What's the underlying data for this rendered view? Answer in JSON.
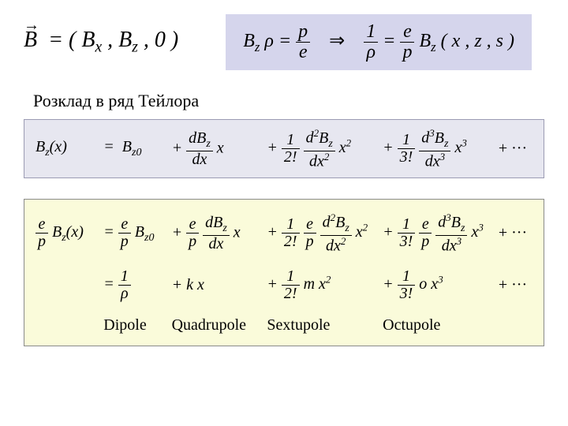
{
  "colors": {
    "page_bg": "#ffffff",
    "purple_band": "#d5d5ec",
    "lav_band": "#e7e7f0",
    "yellow_band": "#fafbda",
    "text": "#000000"
  },
  "top": {
    "B_vector": "B",
    "B_components": "= ( Bₓ , B_z , 0 )",
    "eq_left_lhs": "B_z ρ =",
    "eq_left_num": "p",
    "eq_left_den": "e",
    "implies": "⇒",
    "eq_right_lhs_num": "1",
    "eq_right_lhs_den": "ρ",
    "eq_right_mid": "=",
    "eq_right_rhs_num": "e",
    "eq_right_rhs_den": "p",
    "eq_right_tail": " B_z ( x , z , s )"
  },
  "section_title": "Розклад  в ряд Тейлора",
  "taylor": {
    "c0": "B_z(x)",
    "c1": "=  B_z0",
    "t1a": "+ ",
    "t1num": "dB_z",
    "t1den": "dx",
    "t1b": " x",
    "t2a": "+ ",
    "t2f1n": "1",
    "t2f1d": "2!",
    "t2f2n": "d²B_z",
    "t2f2d": "dx²",
    "t2b": " x²",
    "t3a": "+ ",
    "t3f1n": "1",
    "t3f1d": "3!",
    "t3f2n": "d³B_z",
    "t3f2d": "dx³",
    "t3b": " x³",
    "dots": "+ ···"
  },
  "yellow": {
    "r1c0a_num": "e",
    "r1c0a_den": "p",
    "r1c0b": " B_z(x)",
    "r1c1a": "= ",
    "r1c1num": "e",
    "r1c1den": "p",
    "r1c1b": " B_z0",
    "r1c2a": "+ ",
    "r1c2f1n": "e",
    "r1c2f1d": "p",
    "r1c2f2n": "dB_z",
    "r1c2f2d": "dx",
    "r1c2b": " x",
    "r1c3a": "+ ",
    "r1c3f1n": "1",
    "r1c3f1d": "2!",
    "r1c3f2n": "e",
    "r1c3f2d": "p",
    "r1c3f3n": "d²B_z",
    "r1c3f3d": "dx²",
    "r1c3b": " x²",
    "r1c4a": "+ ",
    "r1c4f1n": "1",
    "r1c4f1d": "3!",
    "r1c4f2n": "e",
    "r1c4f2d": "p",
    "r1c4f3n": "d³B_z",
    "r1c4f3d": "dx³",
    "r1c4b": " x³",
    "r1dots": "+ ···",
    "r2c1a": "= ",
    "r2c1num": "1",
    "r2c1den": "ρ",
    "r2c2": "+ k x",
    "r2c3a": "+ ",
    "r2c3num": "1",
    "r2c3den": "2!",
    "r2c3b": " m x²",
    "r2c4a": "+ ",
    "r2c4num": "1",
    "r2c4den": "3!",
    "r2c4b": " o x³",
    "r2dots": "+ ···",
    "labels": {
      "l1": "Dipole",
      "l2": "Quadrupole",
      "l3": "Sextupole",
      "l4": "Octupole"
    }
  }
}
